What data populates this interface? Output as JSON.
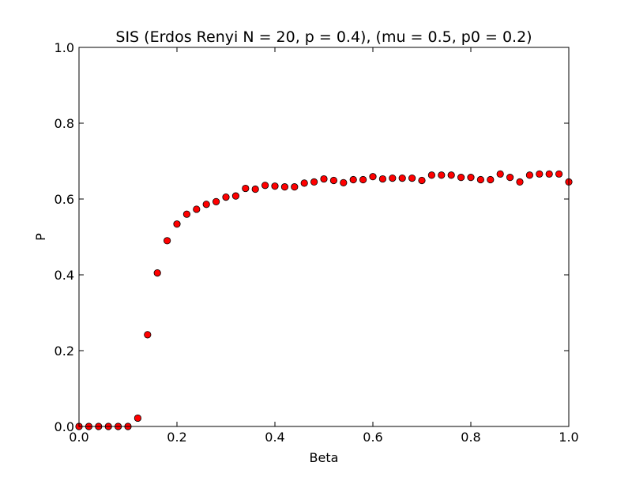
{
  "chart_data": {
    "type": "scatter",
    "title": "SIS (Erdos Renyi N = 20, p = 0.4), (mu = 0.5, p0 = 0.2)",
    "xlabel": "Beta",
    "ylabel": "P",
    "xlim": [
      0,
      1
    ],
    "ylim": [
      0,
      1
    ],
    "xticks": [
      0,
      0.2,
      0.4,
      0.6,
      0.8,
      1
    ],
    "xtick_labels": [
      "0.0",
      "0.2",
      "0.4",
      "0.6",
      "0.8",
      "1.0"
    ],
    "yticks": [
      0,
      0.2,
      0.4,
      0.6,
      0.8,
      1
    ],
    "ytick_labels": [
      "0.0",
      "0.2",
      "0.4",
      "0.6",
      "0.8",
      "1.0"
    ],
    "grid": false,
    "marker_color": "#ff0000",
    "marker_edge_color": "#000000",
    "x": [
      0.0,
      0.02,
      0.04,
      0.06,
      0.08,
      0.1,
      0.12,
      0.14,
      0.16,
      0.18,
      0.2,
      0.22,
      0.24,
      0.26,
      0.28,
      0.3,
      0.32,
      0.34,
      0.36,
      0.38,
      0.4,
      0.42,
      0.44,
      0.46,
      0.48,
      0.5,
      0.52,
      0.54,
      0.56,
      0.58,
      0.6,
      0.62,
      0.64,
      0.66,
      0.68,
      0.7,
      0.72,
      0.74,
      0.76,
      0.78,
      0.8,
      0.82,
      0.84,
      0.86,
      0.88,
      0.9,
      0.92,
      0.94,
      0.96,
      0.98,
      1.0
    ],
    "y": [
      0.0,
      0.0,
      0.0,
      0.0,
      0.0,
      0.0,
      0.022,
      0.242,
      0.405,
      0.49,
      0.534,
      0.56,
      0.573,
      0.586,
      0.593,
      0.605,
      0.608,
      0.628,
      0.626,
      0.636,
      0.634,
      0.632,
      0.632,
      0.642,
      0.645,
      0.653,
      0.649,
      0.643,
      0.651,
      0.651,
      0.659,
      0.653,
      0.655,
      0.655,
      0.655,
      0.649,
      0.663,
      0.663,
      0.663,
      0.657,
      0.657,
      0.651,
      0.651,
      0.666,
      0.657,
      0.645,
      0.663,
      0.666,
      0.666,
      0.666,
      0.645
    ]
  }
}
